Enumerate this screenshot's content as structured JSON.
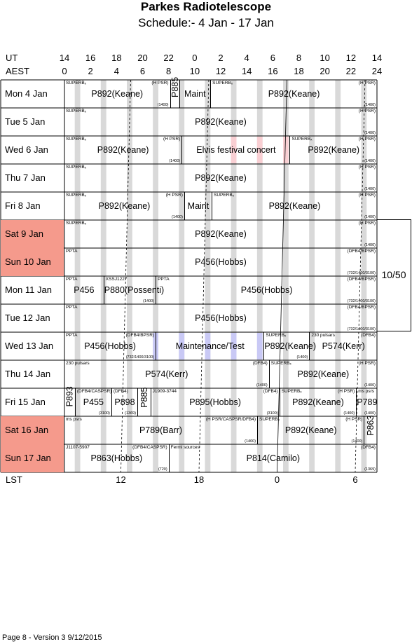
{
  "title": "Parkes Radiotelescope",
  "subtitle": "Schedule:- 4  Jan - 17 Jan",
  "axes": {
    "ut_label": "UT",
    "aest_label": "AEST",
    "lst_label": "LST",
    "ut_ticks": [
      "14",
      "16",
      "18",
      "20",
      "22",
      "0",
      "2",
      "4",
      "6",
      "8",
      "10",
      "12",
      "14"
    ],
    "aest_ticks": [
      "0",
      "2",
      "4",
      "6",
      "8",
      "10",
      "12",
      "14",
      "16",
      "18",
      "20",
      "22",
      "24"
    ],
    "lst_ticks": [
      {
        "label": "12",
        "aest": 4.33
      },
      {
        "label": "18",
        "aest": 10.33
      },
      {
        "label": "0",
        "aest": 16.33
      },
      {
        "label": "6",
        "aest": 22.33
      }
    ]
  },
  "colors": {
    "weekend": "#f59a8c",
    "stripe": "#d9d9d9",
    "maint": "#c9c9f5",
    "concert": "#f9cfd3"
  },
  "side_text": "10/50",
  "footer": "Page 8 - Version 3  9/12/2015",
  "days": [
    {
      "label": "Mon   4  Jan",
      "weekend": false,
      "cells": [
        {
          "start": 0,
          "end": 8.1,
          "main": "P892(Keane)",
          "tl": "SUPERBₓ",
          "tr": "(H PSR)",
          "br": "(1400)"
        },
        {
          "start": 8.1,
          "end": 8.8,
          "main": "P885",
          "vertical": true
        },
        {
          "start": 8.8,
          "end": 11.2,
          "main": "Maint",
          "hl": "maint",
          "hlStart": 9.8,
          "hlEnd": 10.8
        },
        {
          "start": 11.2,
          "end": 24,
          "main": "P892(Keane)",
          "tl": "SUPERBₓ",
          "tr": "(H PSR)",
          "br": "(1400)"
        }
      ]
    },
    {
      "label": "Tue   5  Jan",
      "weekend": false,
      "cells": [
        {
          "start": 0,
          "end": 24,
          "main": "P892(Keane)",
          "tl": "SUPERBₓ",
          "tr": "(H PSR)",
          "br": "(1400)"
        }
      ]
    },
    {
      "label": "Wed   6  Jan",
      "weekend": false,
      "cells": [
        {
          "start": 0,
          "end": 9,
          "main": "P892(Keane)",
          "tl": "SUPERBₓ",
          "tr": "(H PSR)",
          "br": "(1400)"
        },
        {
          "start": 9,
          "end": 17.3,
          "main": "Elvis festival concert",
          "hl": "concert",
          "hlStart": 11.2,
          "hlEnd": 17.1
        },
        {
          "start": 17.3,
          "end": 24,
          "main": "P892(Keane)",
          "tl": "SUPERBₓ",
          "tr": "(H PSR)",
          "br": "(1400)"
        }
      ]
    },
    {
      "label": "Thu   7  Jan",
      "weekend": false,
      "cells": [
        {
          "start": 0,
          "end": 24,
          "main": "P892(Keane)",
          "tl": "SUPERBₓ",
          "tr": "(H PSR)",
          "br": "(1400)"
        }
      ]
    },
    {
      "label": "Fri     8  Jan",
      "weekend": false,
      "cells": [
        {
          "start": 0,
          "end": 9.2,
          "main": "P892(Keane)",
          "tl": "SUPERBₓ",
          "tr": "(H PSR)",
          "br": "(1400)"
        },
        {
          "start": 9.2,
          "end": 11.3,
          "main": "Maint",
          "hl": "maint",
          "hlStart": 9.2,
          "hlEnd": 10.2
        },
        {
          "start": 11.3,
          "end": 24,
          "main": "P892(Keane)",
          "tl": "SUPERBₓ",
          "tr": "(H PSR)",
          "br": "(1400)"
        }
      ]
    },
    {
      "label": "Sat   9  Jan",
      "weekend": true,
      "cells": [
        {
          "start": 0,
          "end": 24,
          "main": "P892(Keane)",
          "tl": "SUPERBₓ",
          "tr": "(H PSR)",
          "br": "(1400)"
        }
      ]
    },
    {
      "label": "Sun   10 Jan",
      "weekend": true,
      "cells": [
        {
          "start": 0,
          "end": 24,
          "main": "P456(Hobbs)",
          "tl": "PPTA",
          "tr": "(DFB4/BPSR)",
          "br": "(732/1400/3100)"
        }
      ]
    },
    {
      "label": "Mon  11 Jan",
      "weekend": false,
      "cells": [
        {
          "start": 0,
          "end": 3,
          "main": "P456",
          "tl": "PPTA"
        },
        {
          "start": 3,
          "end": 7,
          "main": "P880(Possenti)",
          "tl": "XSSJ1227",
          "br": "(1400)"
        },
        {
          "start": 7,
          "end": 24,
          "main": "P456(Hobbs)",
          "tl": "PPTA",
          "tr": "(DFB4/BPSR)",
          "br": "(732/1400/3100)"
        }
      ]
    },
    {
      "label": "Tue   12 Jan",
      "weekend": false,
      "cells": [
        {
          "start": 0,
          "end": 24,
          "main": "P456(Hobbs)",
          "tl": "PPTA",
          "tr": "(DFB4/BPSR)",
          "br": "(732/1400/3100)"
        }
      ]
    },
    {
      "label": "Wed  13 Jan",
      "weekend": false,
      "cells": [
        {
          "start": 0,
          "end": 7,
          "main": "P456(Hobbs)",
          "tl": "PPTA",
          "tr": "(DFB4/BPSR)",
          "br": "(732/1400/3100)"
        },
        {
          "start": 7,
          "end": 15.3,
          "main": "Maintenance/Test",
          "hl": "maint",
          "hlStart": 7,
          "hlEnd": 15.1
        },
        {
          "start": 15.3,
          "end": 18.8,
          "main": "P892(Keane)",
          "tl": "SUPERBₓ",
          "br": "(1400)"
        },
        {
          "start": 18.8,
          "end": 24,
          "main": "P574(Kerr)",
          "tl": "230 pulsars",
          "tr": "(DFB4)"
        }
      ]
    },
    {
      "label": "Thu   14 Jan",
      "weekend": false,
      "cells": [
        {
          "start": 0,
          "end": 15.7,
          "main": "P574(Kerr)",
          "tl": "230 pulsars",
          "tr": "(DFB4)",
          "br": "(1400)"
        },
        {
          "start": 15.7,
          "end": 24,
          "main": "P892(Keane)",
          "tl": "SUPERBₓ",
          "tr": "(H PSR)",
          "br": "(1400)"
        }
      ]
    },
    {
      "label": "Fri     15 Jan",
      "weekend": false,
      "cells": [
        {
          "start": 0,
          "end": 0.8,
          "main": "P893",
          "vertical": true
        },
        {
          "start": 0.8,
          "end": 3.6,
          "main": "P455",
          "tl": "(DFB4/CASPSR)",
          "br": "(3100)"
        },
        {
          "start": 3.6,
          "end": 5.6,
          "main": "P898",
          "tl": "(DFB4)",
          "br": "(1369)"
        },
        {
          "start": 5.6,
          "end": 6.6,
          "main": "P885",
          "vertical": true
        },
        {
          "start": 6.6,
          "end": 16.5,
          "main": "P895(Hobbs)",
          "tl": "J1909-3744",
          "tr": "(DFB4)",
          "br": "(3100)"
        },
        {
          "start": 16.5,
          "end": 22.4,
          "main": "P892(Keane)",
          "tl": "SUPERBₓ",
          "tr": "(H PSR)",
          "br": "(1400)"
        },
        {
          "start": 22.4,
          "end": 24,
          "main": "P789",
          "tl": "ms psrs",
          "br": "(1400)"
        }
      ]
    },
    {
      "label": "Sat   16 Jan",
      "weekend": true,
      "cells": [
        {
          "start": 0,
          "end": 14.8,
          "main": "P789(Barr)",
          "tl": "ms psrs",
          "tr": "(H PSR/CASPSR/DFB4)",
          "br": "(1400)"
        },
        {
          "start": 14.8,
          "end": 23,
          "main": "P892(Keane)",
          "tl": "SUPERBₓ",
          "tr": "(H PSR)",
          "br": "(1400)"
        },
        {
          "start": 23,
          "end": 24,
          "main": "P863",
          "vertical": true
        }
      ]
    },
    {
      "label": "Sun   17 Jan",
      "weekend": true,
      "cells": [
        {
          "start": 0,
          "end": 8,
          "main": "P863(Hobbs)",
          "tl": "J1107-5907",
          "tr": "(DFB4/CASPSR)",
          "br": "(720)"
        },
        {
          "start": 8,
          "end": 24,
          "main": "P814(Camilo)",
          "tl": "Fermi sources",
          "tr": "(DFB4)",
          "br": "(1369)"
        }
      ]
    }
  ]
}
